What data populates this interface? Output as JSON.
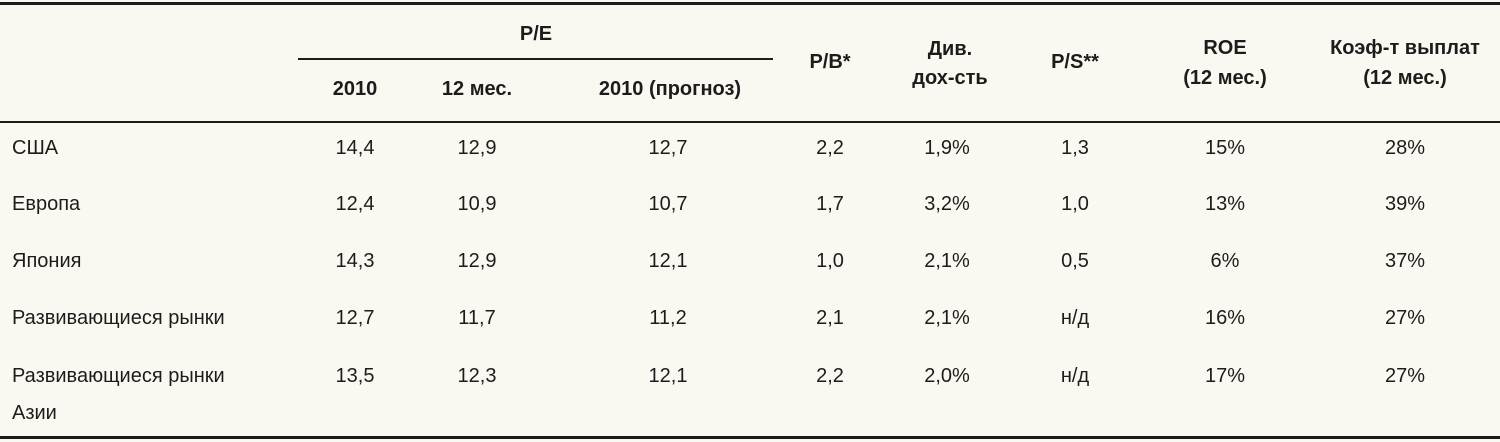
{
  "table": {
    "header": {
      "group_pe": "P/E",
      "pe_2010": "2010",
      "pe_12m": "12 мес.",
      "pe_forecast": "2010 (прогноз)",
      "pb": "P/B*",
      "div_line1": "Див.",
      "div_line2": "дох-сть",
      "ps": "P/S**",
      "roe_line1": "ROE",
      "roe_line2": "(12 мес.)",
      "payout_line1": "Коэф-т выплат",
      "payout_line2": "(12 мес.)"
    },
    "rows": [
      {
        "label": "США",
        "label2": "",
        "pe_2010": "14,4",
        "pe_12m": "12,9",
        "pe_forecast": "12,7",
        "pb": "2,2",
        "div": "1,9%",
        "ps": "1,3",
        "roe": "15%",
        "payout": "28%"
      },
      {
        "label": "Европа",
        "label2": "",
        "pe_2010": "12,4",
        "pe_12m": "10,9",
        "pe_forecast": "10,7",
        "pb": "1,7",
        "div": "3,2%",
        "ps": "1,0",
        "roe": "13%",
        "payout": "39%"
      },
      {
        "label": "Япония",
        "label2": "",
        "pe_2010": "14,3",
        "pe_12m": "12,9",
        "pe_forecast": "12,1",
        "pb": "1,0",
        "div": "2,1%",
        "ps": "0,5",
        "roe": "6%",
        "payout": "37%"
      },
      {
        "label": "Развивающиеся рынки",
        "label2": "",
        "pe_2010": "12,7",
        "pe_12m": "11,7",
        "pe_forecast": "11,2",
        "pb": "2,1",
        "div": "2,1%",
        "ps": "н/д",
        "roe": "16%",
        "payout": "27%"
      },
      {
        "label": "Развивающиеся рынки",
        "label2": "Азии",
        "pe_2010": "13,5",
        "pe_12m": "12,3",
        "pe_forecast": "12,1",
        "pb": "2,2",
        "div": "2,0%",
        "ps": "н/д",
        "roe": "17%",
        "payout": "27%"
      }
    ]
  }
}
